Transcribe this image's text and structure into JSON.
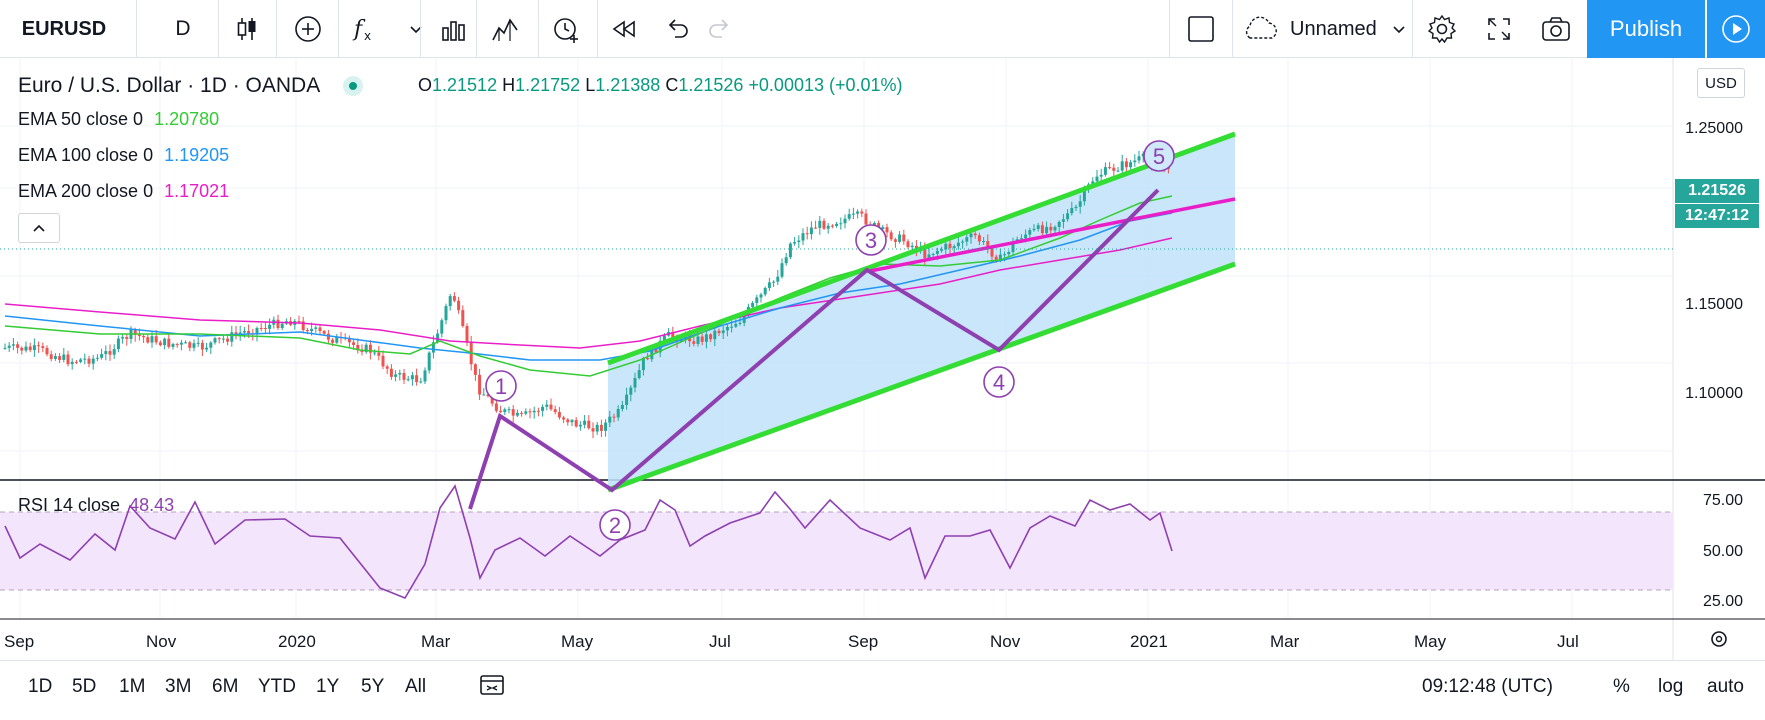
{
  "toolbar": {
    "symbol": "EURUSD",
    "interval": "D",
    "layout_name": "Unnamed",
    "publish_label": "Publish",
    "icons": [
      "candles-icon",
      "add-compare-icon",
      "indicators-icon",
      "chevron-down-icon",
      "financials-icon",
      "templates-icon",
      "alert-icon",
      "replay-icon",
      "undo-icon",
      "redo-icon",
      "layout-square-icon",
      "cloud-icon",
      "settings-icon",
      "fullscreen-icon",
      "camera-icon",
      "play-icon"
    ]
  },
  "legend": {
    "title": "Euro / U.S. Dollar · 1D · OANDA",
    "open_label": "O",
    "open": "1.21512",
    "high_label": "H",
    "high": "1.21752",
    "low_label": "L",
    "low": "1.21388",
    "close_label": "C",
    "close": "1.21526",
    "change": "+0.00013 (+0.01%)",
    "ema50_label": "EMA 50 close 0",
    "ema50_value": "1.20780",
    "ema100_label": "EMA 100 close 0",
    "ema100_value": "1.19205",
    "ema200_label": "EMA 200 close 0",
    "ema200_value": "1.17021"
  },
  "price_axis": {
    "currency": "USD",
    "ticks": [
      "1.25000",
      "1.15000",
      "1.10000"
    ],
    "current_price": "1.21526",
    "countdown": "12:47:12"
  },
  "rsi": {
    "label": "RSI 14 close",
    "value": "48.43",
    "ticks": [
      "75.00",
      "50.00",
      "25.00"
    ]
  },
  "time_axis": {
    "labels": [
      "Sep",
      "Nov",
      "2020",
      "Mar",
      "May",
      "Jul",
      "Sep",
      "Nov",
      "2021",
      "Mar",
      "May",
      "Jul"
    ]
  },
  "wave_labels": [
    "1",
    "2",
    "3",
    "4",
    "5"
  ],
  "bottom": {
    "ranges": [
      "1D",
      "5D",
      "1M",
      "3M",
      "6M",
      "YTD",
      "1Y",
      "5Y",
      "All"
    ],
    "clock": "09:12:48 (UTC)",
    "percent": "%",
    "log": "log",
    "auto": "auto"
  },
  "colors": {
    "ema50": "#33cc33",
    "ema100": "#2196f3",
    "ema200": "#e91ec8",
    "channel": "#33dd33",
    "wave": "#8e3fb0",
    "up": "#26a69a",
    "down": "#ef5350",
    "accent": "#2196f3"
  }
}
